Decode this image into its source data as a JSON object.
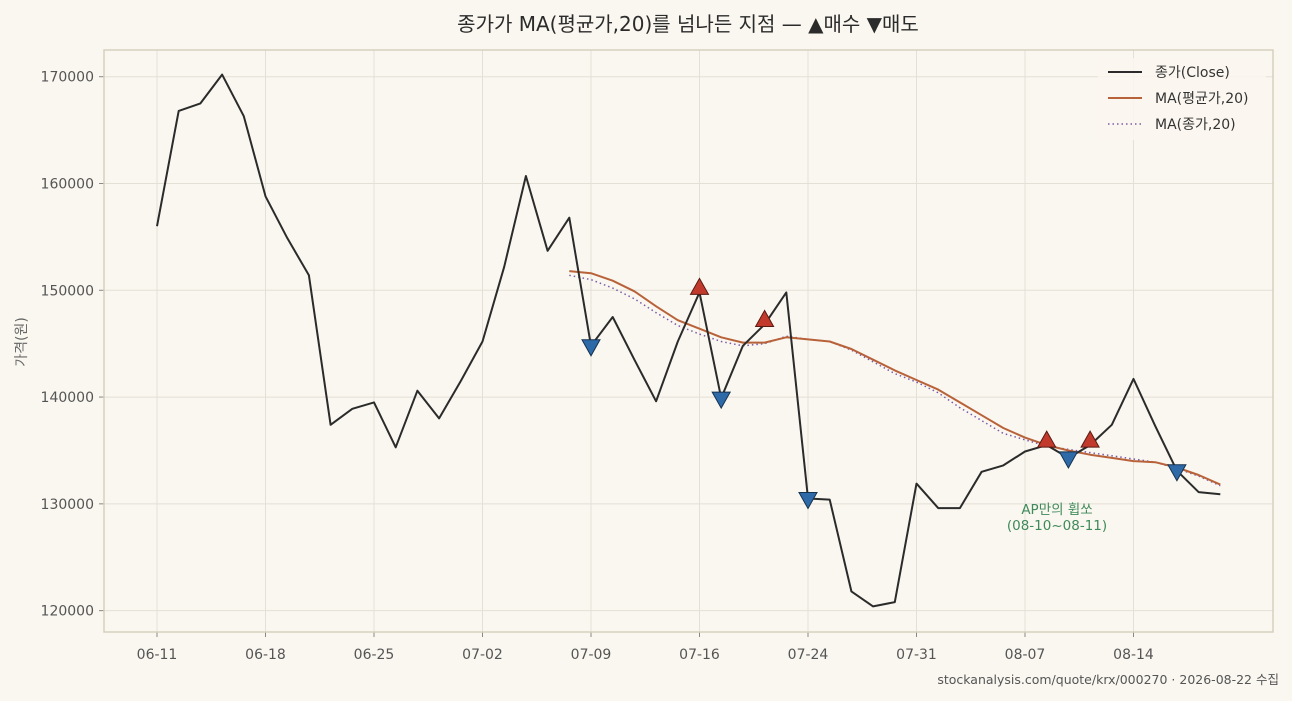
{
  "chart_data": {
    "type": "line",
    "title": "종가가 MA(평균가,20)를 넘나든 지점 — ▲매수 ▼매도",
    "xlabel": "",
    "ylabel": "가격(원)",
    "ylim": [
      118000,
      172500
    ],
    "yticks": [
      120000,
      130000,
      140000,
      150000,
      160000,
      170000
    ],
    "xticks": [
      "06-11",
      "06-18",
      "06-25",
      "07-02",
      "07-09",
      "07-16",
      "07-24",
      "07-31",
      "08-07",
      "08-14"
    ],
    "grid": true,
    "legend_position": "top-right",
    "series": [
      {
        "name": "종가(Close)",
        "color": "#2b2b2b",
        "style": "solid",
        "values": [
          156000,
          166800,
          167500,
          170200,
          166300,
          158800,
          154900,
          151400,
          137400,
          138900,
          139500,
          135300,
          140600,
          138000,
          141500,
          145200,
          152200,
          160700,
          153700,
          156800,
          144800,
          147500,
          143500,
          139600,
          145200,
          149800,
          139900,
          144800,
          146800,
          149800,
          130500,
          130400,
          121800,
          120400,
          120800,
          131900,
          129600,
          129600,
          133000,
          133600,
          134900,
          135500,
          134300,
          135500,
          137400,
          141700,
          137300,
          133100,
          131100,
          130900
        ]
      },
      {
        "name": "MA(평균가,20)",
        "color": "#b8623a",
        "style": "solid",
        "values": [
          null,
          null,
          null,
          null,
          null,
          null,
          null,
          null,
          null,
          null,
          null,
          null,
          null,
          null,
          null,
          null,
          null,
          null,
          null,
          151800,
          151600,
          150900,
          149900,
          148500,
          147200,
          146400,
          145600,
          145100,
          145100,
          145600,
          145400,
          145200,
          144500,
          143500,
          142500,
          141600,
          140700,
          139500,
          138300,
          137100,
          136200,
          135500,
          135000,
          134600,
          134300,
          134000,
          133900,
          133400,
          132700,
          131800
        ]
      },
      {
        "name": "MA(종가,20)",
        "color": "#7a5aa8",
        "style": "dotted",
        "values": [
          null,
          null,
          null,
          null,
          null,
          null,
          null,
          null,
          null,
          null,
          null,
          null,
          null,
          null,
          null,
          null,
          null,
          null,
          null,
          151400,
          151000,
          150200,
          149200,
          147900,
          146700,
          145900,
          145200,
          144800,
          145000,
          145700,
          145400,
          145200,
          144400,
          143300,
          142200,
          141400,
          140400,
          139000,
          137800,
          136600,
          136000,
          135400,
          135100,
          134800,
          134500,
          134200,
          133900,
          133300,
          132600,
          131700
        ]
      }
    ],
    "buy_signals": [
      {
        "index": 25,
        "value": 149800
      },
      {
        "index": 28,
        "value": 146800
      },
      {
        "index": 41,
        "value": 135500
      },
      {
        "index": 43,
        "value": 135500
      }
    ],
    "sell_signals": [
      {
        "index": 20,
        "value": 144800
      },
      {
        "index": 26,
        "value": 139900
      },
      {
        "index": 30,
        "value": 130500
      },
      {
        "index": 42,
        "value": 134300
      },
      {
        "index": 47,
        "value": 133100
      }
    ],
    "annotation": {
      "line1": "AP만의 휩쏘",
      "line2": "(08-10~08-11)",
      "index": 42,
      "value": 128800
    },
    "source_text": "stockanalysis.com/quote/krx/000270 · 2026-08-22 수집"
  },
  "colors": {
    "background": "#faf7f0",
    "frame": "#d6d0bc",
    "grid": "#e4e0d6",
    "buy": "#c23a2c",
    "sell": "#2f6aa8"
  }
}
